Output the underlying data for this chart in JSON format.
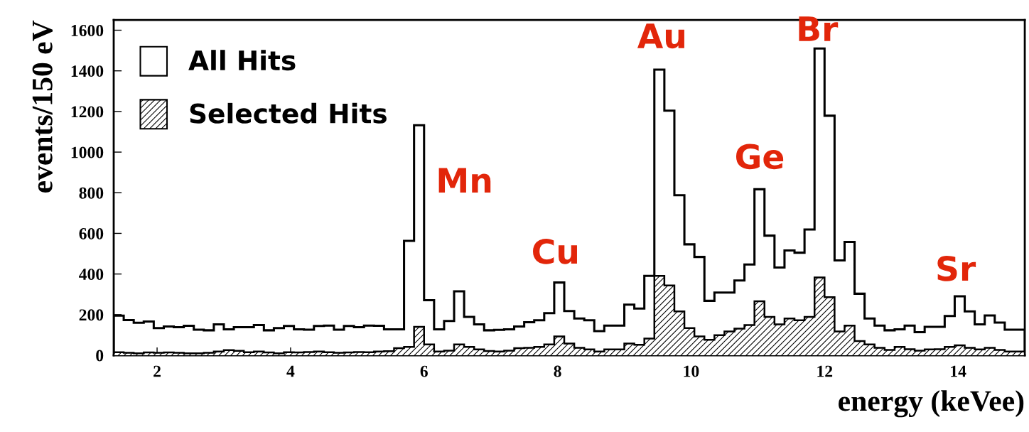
{
  "chart_data": {
    "type": "histogram",
    "xlabel": "energy (keVee)",
    "ylabel": "events/150 eV",
    "bins": [
      1.35,
      1.5,
      1.65,
      1.8,
      1.95,
      2.1,
      2.25,
      2.4,
      2.55,
      2.7,
      2.85,
      3.0,
      3.15,
      3.3,
      3.45,
      3.6,
      3.75,
      3.9,
      4.05,
      4.2,
      4.35,
      4.5,
      4.65,
      4.8,
      4.95,
      5.1,
      5.25,
      5.4,
      5.55,
      5.7,
      5.85,
      6.0,
      6.15,
      6.3,
      6.45,
      6.6,
      6.75,
      6.9,
      7.05,
      7.2,
      7.35,
      7.5,
      7.65,
      7.8,
      7.95,
      8.1,
      8.25,
      8.4,
      8.55,
      8.7,
      8.85,
      9.0,
      9.15,
      9.3,
      9.45,
      9.6,
      9.75,
      9.9,
      10.05,
      10.2,
      10.35,
      10.5,
      10.65,
      10.8,
      10.95,
      11.1,
      11.25,
      11.4,
      11.55,
      11.7,
      11.85,
      12.0,
      12.15,
      12.3,
      12.45,
      12.6,
      12.75,
      12.9,
      13.05,
      13.2,
      13.35,
      13.5,
      13.65,
      13.8,
      13.95,
      14.1,
      14.25,
      14.4,
      14.55,
      14.7,
      14.85,
      15.0
    ],
    "series": [
      {
        "name": "All Hits",
        "color": "#000000",
        "values": [
          195,
          173,
          160,
          166,
          134,
          142,
          138,
          145,
          126,
          123,
          152,
          128,
          138,
          138,
          149,
          123,
          134,
          144,
          128,
          126,
          144,
          146,
          126,
          144,
          138,
          146,
          145,
          128,
          128,
          563,
          1132,
          271,
          128,
          169,
          315,
          189,
          152,
          123,
          125,
          128,
          142,
          163,
          172,
          207,
          358,
          218,
          181,
          172,
          119,
          146,
          146,
          249,
          230,
          391,
          1406,
          1204,
          788,
          546,
          484,
          268,
          309,
          309,
          368,
          447,
          817,
          589,
          432,
          516,
          505,
          619,
          1510,
          1179,
          467,
          558,
          303,
          181,
          146,
          123,
          128,
          146,
          114,
          140,
          140,
          193,
          290,
          216,
          152,
          196,
          161,
          126,
          126
        ]
      },
      {
        "name": "Selected Hits",
        "color": "#000000",
        "values": [
          15,
          12,
          10,
          14,
          12,
          14,
          12,
          10,
          10,
          12,
          18,
          25,
          22,
          15,
          18,
          14,
          10,
          15,
          14,
          16,
          18,
          15,
          12,
          14,
          16,
          15,
          18,
          20,
          35,
          41,
          140,
          53,
          18,
          23,
          53,
          41,
          29,
          21,
          18,
          23,
          35,
          37,
          41,
          53,
          93,
          58,
          37,
          29,
          18,
          29,
          29,
          58,
          52,
          82,
          391,
          344,
          216,
          134,
          93,
          76,
          99,
          117,
          131,
          149,
          266,
          189,
          152,
          181,
          172,
          189,
          383,
          286,
          117,
          146,
          70,
          53,
          37,
          26,
          41,
          30,
          23,
          29,
          30,
          41,
          49,
          37,
          29,
          37,
          26,
          18,
          18
        ]
      }
    ],
    "xlim": [
      1.35,
      15.0
    ],
    "xticks": [
      2,
      4,
      6,
      8,
      10,
      12,
      14
    ],
    "ylim": [
      0,
      1650
    ],
    "yticks": [
      0,
      200,
      400,
      600,
      800,
      1000,
      1200,
      1400,
      1600
    ],
    "grid": false,
    "legend": "top left",
    "annotations": [
      "Mn",
      "Cu",
      "Au",
      "Ge",
      "Br",
      "Sr"
    ]
  }
}
